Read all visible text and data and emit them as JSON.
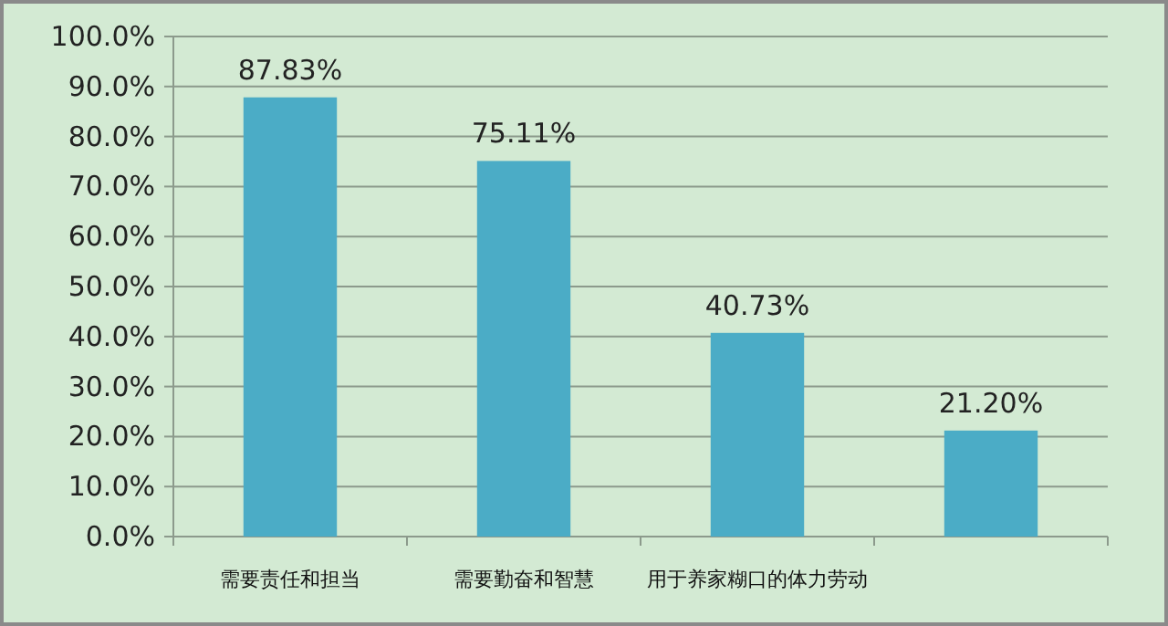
{
  "chart_data": {
    "type": "bar",
    "categories": [
      "需要责任和担当",
      "需要勤奋和智慧",
      "用于养家糊口的体力劳动",
      null
    ],
    "values": [
      87.83,
      75.11,
      40.73,
      21.2
    ],
    "value_labels": [
      "87.83%",
      "75.11%",
      "40.73%",
      "21.20%"
    ],
    "color": "#4bacc6",
    "ylim": [
      0,
      100
    ],
    "yticks": [
      {
        "value": 0,
        "label": "0.0%"
      },
      {
        "value": 10,
        "label": "10.0%"
      },
      {
        "value": 20,
        "label": "20.0%"
      },
      {
        "value": 30,
        "label": "30.0%"
      },
      {
        "value": 40,
        "label": "40.0%"
      },
      {
        "value": 50,
        "label": "50.0%"
      },
      {
        "value": 60,
        "label": "60.0%"
      },
      {
        "value": 70,
        "label": "70.0%"
      },
      {
        "value": 80,
        "label": "80.0%"
      },
      {
        "value": 90,
        "label": "90.0%"
      },
      {
        "value": 100,
        "label": "100.0%"
      }
    ],
    "grid": "y"
  }
}
